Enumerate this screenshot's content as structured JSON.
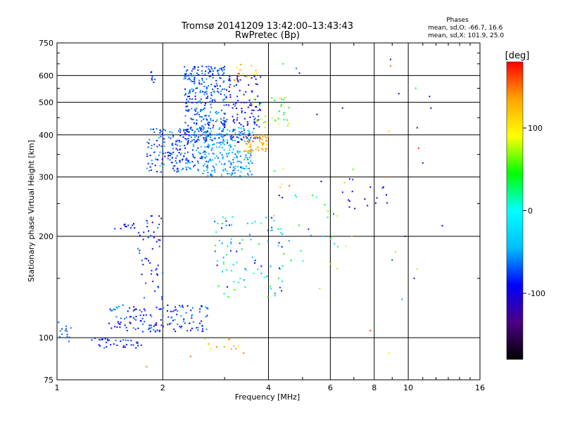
{
  "chart_data": {
    "type": "scatter",
    "title": "Tromsø 20141209 13:42:00–13:43:43",
    "subtitle": "RwPretec (Bp)",
    "xlabel": "Frequency [MHz]",
    "ylabel": "Stationary phase Virtual Height [km]",
    "x_scale": "log",
    "y_scale": "log",
    "xlim": [
      1,
      16
    ],
    "ylim": [
      75,
      750
    ],
    "x_ticks": [
      "1",
      "2",
      "4",
      "6",
      "8",
      "10",
      "16"
    ],
    "y_ticks": [
      "75",
      "100",
      "200",
      "300",
      "400",
      "500",
      "600",
      "750"
    ],
    "grid": true,
    "stats": {
      "heading": "Phases",
      "line_o": "mean, sd,O: -66.7, 16.6",
      "line_x": "mean, sd,X: 101.9, 25.0"
    },
    "colorbar": {
      "label": "[deg]",
      "ticks": [
        "100",
        "0",
        "-100"
      ],
      "range": [
        -180,
        180
      ],
      "colors": [
        "#000000",
        "#4b0082",
        "#0000ff",
        "#00bfff",
        "#00ffff",
        "#00ff00",
        "#ffff00",
        "#ffa500",
        "#ff0000"
      ]
    },
    "clusters": [
      {
        "freq": [
          1.0,
          1.1
        ],
        "height": [
          95,
          112
        ],
        "phase": [
          -80,
          -55
        ],
        "n": 14
      },
      {
        "freq": [
          1.25,
          1.85
        ],
        "height": [
          93,
          100
        ],
        "phase": [
          -110,
          -60
        ],
        "n": 40
      },
      {
        "freq": [
          1.4,
          2.7
        ],
        "height": [
          104,
          125
        ],
        "phase": [
          -110,
          -50
        ],
        "n": 150
      },
      {
        "freq": [
          1.7,
          2.0
        ],
        "height": [
          130,
          230
        ],
        "phase": [
          -110,
          -60
        ],
        "n": 50
      },
      {
        "freq": [
          1.45,
          1.7
        ],
        "height": [
          210,
          218
        ],
        "phase": [
          -105,
          -75
        ],
        "n": 12
      },
      {
        "freq": [
          1.85,
          1.9
        ],
        "height": [
          570,
          620
        ],
        "phase": [
          -90,
          -60
        ],
        "n": 8
      },
      {
        "freq": [
          1.8,
          2.7
        ],
        "height": [
          310,
          420
        ],
        "phase": [
          -100,
          -40
        ],
        "n": 220
      },
      {
        "freq": [
          2.3,
          3.0
        ],
        "height": [
          380,
          640
        ],
        "phase": [
          -90,
          -50
        ],
        "n": 300
      },
      {
        "freq": [
          2.6,
          3.6
        ],
        "height": [
          300,
          420
        ],
        "phase": [
          -70,
          -30
        ],
        "n": 200
      },
      {
        "freq": [
          3.0,
          3.8
        ],
        "height": [
          380,
          600
        ],
        "phase": [
          -110,
          -70
        ],
        "n": 130
      },
      {
        "freq": [
          3.2,
          3.7
        ],
        "height": [
          560,
          650
        ],
        "phase": [
          80,
          160
        ],
        "n": 15
      },
      {
        "freq": [
          3.4,
          4.0
        ],
        "height": [
          355,
          400
        ],
        "phase": [
          110,
          150
        ],
        "n": 60
      },
      {
        "freq": [
          3.6,
          4.6
        ],
        "height": [
          420,
          520
        ],
        "phase": [
          30,
          110
        ],
        "n": 35
      },
      {
        "freq": [
          2.8,
          4.4
        ],
        "height": [
          130,
          230
        ],
        "phase": [
          -110,
          60
        ],
        "n": 90
      },
      {
        "freq": [
          2.6,
          3.4
        ],
        "height": [
          92,
          100
        ],
        "phase": [
          80,
          150
        ],
        "n": 12
      },
      {
        "freq": [
          4.0,
          7.0
        ],
        "height": [
          150,
          320
        ],
        "phase": [
          -120,
          160
        ],
        "n": 40
      },
      {
        "freq": [
          6.0,
          9.0
        ],
        "height": [
          240,
          300
        ],
        "phase": [
          -120,
          -60
        ],
        "n": 15
      }
    ],
    "points": [
      {
        "x": 8.9,
        "y": 670,
        "phase": -110
      },
      {
        "x": 8.9,
        "y": 640,
        "phase": 150
      },
      {
        "x": 9.4,
        "y": 530,
        "phase": -120
      },
      {
        "x": 8.8,
        "y": 410,
        "phase": 120
      },
      {
        "x": 10.5,
        "y": 550,
        "phase": 40
      },
      {
        "x": 10.6,
        "y": 420,
        "phase": -110
      },
      {
        "x": 10.7,
        "y": 365,
        "phase": 170
      },
      {
        "x": 11.0,
        "y": 330,
        "phase": -120
      },
      {
        "x": 11.5,
        "y": 520,
        "phase": -120
      },
      {
        "x": 11.6,
        "y": 480,
        "phase": -110
      },
      {
        "x": 12.5,
        "y": 215,
        "phase": -90
      },
      {
        "x": 9.8,
        "y": 200,
        "phase": -110
      },
      {
        "x": 9.2,
        "y": 180,
        "phase": 120
      },
      {
        "x": 9.0,
        "y": 170,
        "phase": -70
      },
      {
        "x": 9.6,
        "y": 130,
        "phase": -50
      },
      {
        "x": 10.4,
        "y": 150,
        "phase": -120
      },
      {
        "x": 10.6,
        "y": 160,
        "phase": 110
      },
      {
        "x": 8.5,
        "y": 280,
        "phase": -110
      },
      {
        "x": 8.7,
        "y": 300,
        "phase": 160
      },
      {
        "x": 8.8,
        "y": 90,
        "phase": 100
      },
      {
        "x": 7.8,
        "y": 105,
        "phase": 160
      },
      {
        "x": 6.5,
        "y": 480,
        "phase": -120
      },
      {
        "x": 5.5,
        "y": 460,
        "phase": -110
      },
      {
        "x": 4.8,
        "y": 630,
        "phase": -60
      },
      {
        "x": 4.9,
        "y": 610,
        "phase": -100
      },
      {
        "x": 4.4,
        "y": 650,
        "phase": 40
      },
      {
        "x": 5.6,
        "y": 140,
        "phase": 120
      },
      {
        "x": 5.2,
        "y": 210,
        "phase": -80
      },
      {
        "x": 3.4,
        "y": 90,
        "phase": 150
      },
      {
        "x": 2.4,
        "y": 88,
        "phase": 150
      },
      {
        "x": 1.8,
        "y": 82,
        "phase": 150
      }
    ]
  }
}
